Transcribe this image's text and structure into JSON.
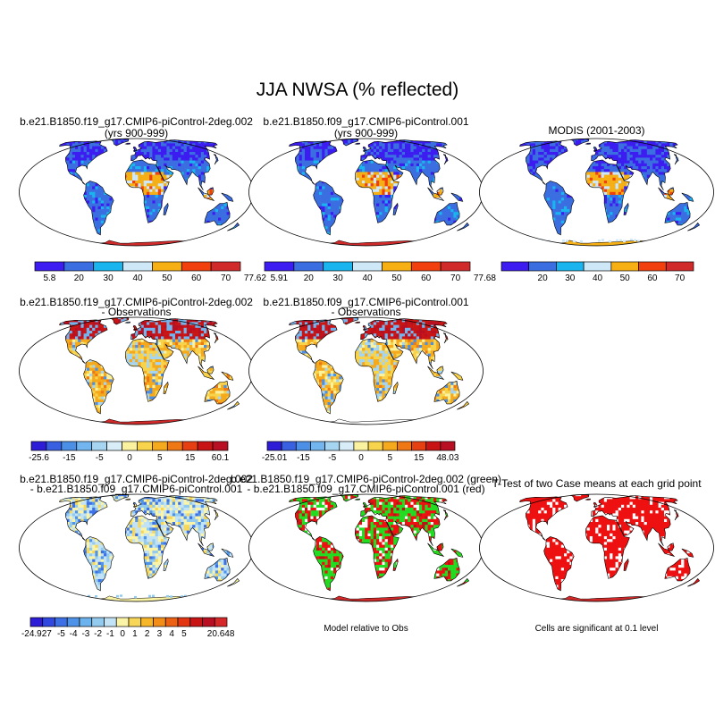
{
  "title": "JJA NWSA (% reflected)",
  "colors": {
    "abs": [
      "#3c1cf0",
      "#3b6ee0",
      "#1ab5ee",
      "#cfe8f7",
      "#f7b014",
      "#f1400e",
      "#d12a2a"
    ],
    "diff": [
      "#2e1dd6",
      "#3860e0",
      "#4c8fe6",
      "#73b5ee",
      "#a6d5f2",
      "#d8edf8",
      "#fbf2a0",
      "#f8d34c",
      "#f5a91c",
      "#ef7814",
      "#e63f12",
      "#c81414",
      "#b80f22"
    ],
    "diff2": [
      "#2e1dd6",
      "#3048df",
      "#3c70e4",
      "#4f93e8",
      "#6cb2ec",
      "#93cbef",
      "#c2e2f5",
      "#fbf4a6",
      "#f8d657",
      "#f6b628",
      "#f28d18",
      "#ec6114",
      "#e23612",
      "#c81414",
      "#b80f22",
      "#d62828"
    ],
    "ocean": "#ffffff",
    "land": "#ffffff",
    "sig_red": "#ee1111",
    "green": "#22dd22"
  },
  "panels": [
    {
      "id": "case1",
      "title_lines": [
        "b.e21.B1850.f19_g17.CMIP6-piControl-2deg.002",
        "(yrs 900-999)"
      ],
      "map": {
        "mode": "abs",
        "antarctica": "red"
      },
      "colorbar": {
        "palette": "abs",
        "labels": [
          "5.8",
          "20",
          "30",
          "40",
          "50",
          "60",
          "70",
          "77.62"
        ]
      }
    },
    {
      "id": "case2",
      "title_lines": [
        "b.e21.B1850.f09_g17.CMIP6-piControl.001",
        "(yrs 900-999)"
      ],
      "map": {
        "mode": "abs",
        "antarctica": "red"
      },
      "colorbar": {
        "palette": "abs",
        "labels": [
          "5.91",
          "20",
          "30",
          "40",
          "50",
          "60",
          "70",
          "77.68"
        ]
      }
    },
    {
      "id": "obs",
      "title_lines": [
        "MODIS (2001-2003)"
      ],
      "map": {
        "mode": "abs_obs",
        "antarctica": "yellow"
      },
      "colorbar": {
        "palette": "abs",
        "labels": [
          "",
          "20",
          "30",
          "40",
          "50",
          "60",
          "70",
          ""
        ]
      }
    },
    {
      "id": "diff1",
      "title_lines": [
        "b.e21.B1850.f19_g17.CMIP6-piControl-2deg.002",
        "- Observations"
      ],
      "map": {
        "mode": "diff_pos",
        "antarctica": "red"
      },
      "colorbar": {
        "palette": "diff",
        "labels": [
          "-25.6",
          "",
          "-15",
          "",
          "-5",
          "",
          "0",
          "",
          "5",
          "",
          "15",
          "",
          "60.1"
        ]
      }
    },
    {
      "id": "diff2",
      "title_lines": [
        "b.e21.B1850.f09_g17.CMIP6-piControl.001",
        "- Observations"
      ],
      "map": {
        "mode": "diff_pos",
        "antarctica": "none"
      },
      "colorbar": {
        "palette": "diff",
        "labels": [
          "-25.01",
          "",
          "-15",
          "",
          "-5",
          "",
          "0",
          "",
          "5",
          "",
          "15",
          "",
          "48.03"
        ]
      }
    },
    {
      "id": "case_diff",
      "title_lines": [
        "b.e21.B1850.f19_g17.CMIP6-piControl-2deg.002",
        "- b.e21.B1850.f09_g17.CMIP6-piControl.001"
      ],
      "map": {
        "mode": "diff_small",
        "antarctica": "yellow"
      },
      "colorbar": {
        "palette": "diff2",
        "labels": [
          "-24.927",
          "",
          "-5",
          "-4",
          "-3",
          "-2",
          "-1",
          "0",
          "1",
          "2",
          "3",
          "4",
          "5",
          "",
          "",
          "20.648"
        ]
      }
    },
    {
      "id": "rel_obs",
      "title_lines": [
        "b.e21.B1850.f19_g17.CMIP6-piControl-2deg.002 (green)",
        "- b.e21.B1850.f09_g17.CMIP6-piControl.001 (red)"
      ],
      "map": {
        "mode": "green_red",
        "antarctica": "red"
      },
      "caption": "Model relative to Obs"
    },
    {
      "id": "ttest",
      "title_lines": [
        "T-Test of two Case means at each grid point"
      ],
      "map": {
        "mode": "sig",
        "antarctica": "red"
      },
      "caption": "Cells are significant at 0.1 level"
    }
  ]
}
